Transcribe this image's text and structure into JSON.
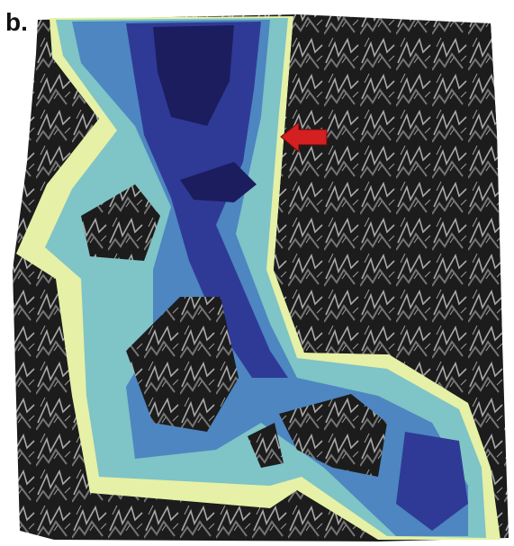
{
  "panel_label": "b."
}
